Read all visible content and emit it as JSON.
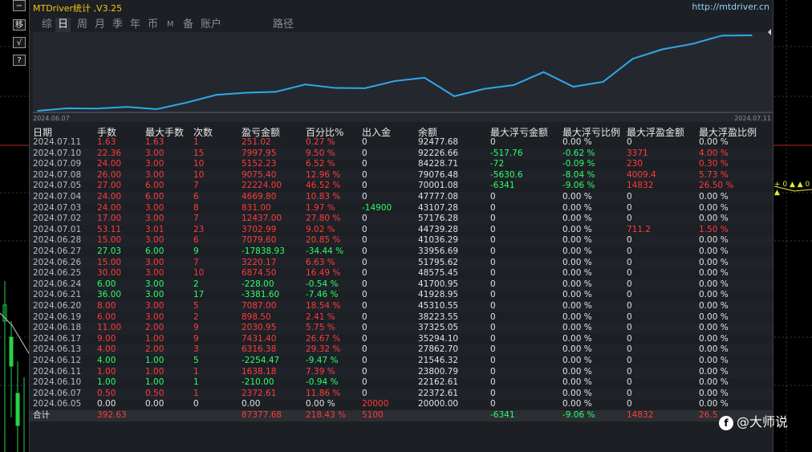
{
  "window": {
    "title": "MTDriver统计 ,V3.25",
    "url": "http://mtdriver.cn"
  },
  "side_buttons": [
    "−",
    "移",
    "√",
    "?"
  ],
  "tabs": [
    {
      "label": "综",
      "active": false
    },
    {
      "label": "日",
      "active": true
    },
    {
      "label": "周",
      "active": false
    },
    {
      "label": "月",
      "active": false
    },
    {
      "label": "季",
      "active": false
    },
    {
      "label": "年",
      "active": false
    },
    {
      "label": "币",
      "active": false
    },
    {
      "label": "M",
      "active": false
    },
    {
      "label": "备",
      "active": false
    },
    {
      "label": "账户",
      "active": false
    },
    {
      "label": "路径",
      "active": false
    }
  ],
  "chart_data": {
    "type": "line",
    "x_start_label": "2024.06.07",
    "x_end_label": "2024.07.11",
    "x": [
      "2024.06.05",
      "2024.06.07",
      "2024.06.10",
      "2024.06.11",
      "2024.06.12",
      "2024.06.13",
      "2024.06.17",
      "2024.06.18",
      "2024.06.19",
      "2024.06.20",
      "2024.06.21",
      "2024.06.24",
      "2024.06.25",
      "2024.06.26",
      "2024.06.27",
      "2024.06.28",
      "2024.07.01",
      "2024.07.02",
      "2024.07.03",
      "2024.07.04",
      "2024.07.05",
      "2024.07.08",
      "2024.07.09",
      "2024.07.10",
      "2024.07.11"
    ],
    "values": [
      20000.0,
      22372.61,
      22162.61,
      23800.79,
      21546.32,
      27862.7,
      35294.1,
      37325.05,
      38223.55,
      45310.55,
      41928.95,
      41700.95,
      48575.45,
      51795.62,
      33956.69,
      41036.29,
      44739.28,
      57176.28,
      43107.28,
      47777.08,
      70001.08,
      79076.48,
      84228.71,
      92226.66,
      92477.68
    ],
    "line_color": "#2fa8e6",
    "grid": false
  },
  "columns": [
    "日期",
    "手数",
    "最大手数",
    "次数",
    "盈亏金额",
    "百分比%",
    "出入金",
    "余额",
    "最大浮亏金额",
    "最大浮亏比例",
    "最大浮盈金额",
    "最大浮盈比例"
  ],
  "rows": [
    {
      "date": "2024.07.11",
      "lots": "1.63",
      "maxlots": "1.63",
      "count": "1",
      "pl": "251.02",
      "pct": "0.27 %",
      "io": "0",
      "bal": "92477.68",
      "mfl": "0",
      "mflp": "0.00 %",
      "mfp": "0",
      "mfpp": "0.00 %",
      "pos": true
    },
    {
      "date": "2024.07.10",
      "lots": "22.36",
      "maxlots": "3.00",
      "count": "15",
      "pl": "7997.95",
      "pct": "9.50 %",
      "io": "0",
      "bal": "92226.66",
      "mfl": "-517.76",
      "mflp": "-0.62 %",
      "mfp": "3371",
      "mfpp": "4.00 %",
      "pos": true
    },
    {
      "date": "2024.07.09",
      "lots": "24.00",
      "maxlots": "3.00",
      "count": "10",
      "pl": "5152.23",
      "pct": "6.52 %",
      "io": "0",
      "bal": "84228.71",
      "mfl": "-72",
      "mflp": "-0.09 %",
      "mfp": "230",
      "mfpp": "0.30 %",
      "pos": true
    },
    {
      "date": "2024.07.08",
      "lots": "26.00",
      "maxlots": "3.00",
      "count": "10",
      "pl": "9075.40",
      "pct": "12.96 %",
      "io": "0",
      "bal": "79076.48",
      "mfl": "-5630.6",
      "mflp": "-8.04 %",
      "mfp": "4009.4",
      "mfpp": "5.73 %",
      "pos": true
    },
    {
      "date": "2024.07.05",
      "lots": "27.00",
      "maxlots": "6.00",
      "count": "7",
      "pl": "22224.00",
      "pct": "46.52 %",
      "io": "0",
      "bal": "70001.08",
      "mfl": "-6341",
      "mflp": "-9.06 %",
      "mfp": "14832",
      "mfpp": "26.50 %",
      "pos": true
    },
    {
      "date": "2024.07.04",
      "lots": "24.00",
      "maxlots": "6.00",
      "count": "6",
      "pl": "4669.80",
      "pct": "10.83 %",
      "io": "0",
      "bal": "47777.08",
      "mfl": "0",
      "mflp": "0.00 %",
      "mfp": "0",
      "mfpp": "0.00 %",
      "pos": true
    },
    {
      "date": "2024.07.03",
      "lots": "24.00",
      "maxlots": "3.00",
      "count": "8",
      "pl": "831.00",
      "pct": "1.97 %",
      "io": "-14900",
      "bal": "43107.28",
      "mfl": "0",
      "mflp": "0.00 %",
      "mfp": "0",
      "mfpp": "0.00 %",
      "pos": true,
      "io_color": "green"
    },
    {
      "date": "2024.07.02",
      "lots": "17.00",
      "maxlots": "3.00",
      "count": "7",
      "pl": "12437.00",
      "pct": "27.80 %",
      "io": "0",
      "bal": "57176.28",
      "mfl": "0",
      "mflp": "0.00 %",
      "mfp": "0",
      "mfpp": "0.00 %",
      "pos": true
    },
    {
      "date": "2024.07.01",
      "lots": "53.11",
      "maxlots": "3.01",
      "count": "23",
      "pl": "3702.99",
      "pct": "9.02 %",
      "io": "0",
      "bal": "44739.28",
      "mfl": "0",
      "mflp": "0.00 %",
      "mfp": "711.2",
      "mfpp": "1.50 %",
      "pos": true
    },
    {
      "date": "2024.06.28",
      "lots": "15.00",
      "maxlots": "3.00",
      "count": "6",
      "pl": "7079.60",
      "pct": "20.85 %",
      "io": "0",
      "bal": "41036.29",
      "mfl": "0",
      "mflp": "0.00 %",
      "mfp": "0",
      "mfpp": "0.00 %",
      "pos": true
    },
    {
      "date": "2024.06.27",
      "lots": "27.03",
      "maxlots": "6.00",
      "count": "9",
      "pl": "-17838.93",
      "pct": "-34.44 %",
      "io": "0",
      "bal": "33956.69",
      "mfl": "0",
      "mflp": "0.00 %",
      "mfp": "0",
      "mfpp": "0.00 %",
      "pos": false
    },
    {
      "date": "2024.06.26",
      "lots": "15.00",
      "maxlots": "3.00",
      "count": "7",
      "pl": "3220.17",
      "pct": "6.63 %",
      "io": "0",
      "bal": "51795.62",
      "mfl": "0",
      "mflp": "0.00 %",
      "mfp": "0",
      "mfpp": "0.00 %",
      "pos": true
    },
    {
      "date": "2024.06.25",
      "lots": "30.00",
      "maxlots": "3.00",
      "count": "10",
      "pl": "6874.50",
      "pct": "16.49 %",
      "io": "0",
      "bal": "48575.45",
      "mfl": "0",
      "mflp": "0.00 %",
      "mfp": "0",
      "mfpp": "0.00 %",
      "pos": true
    },
    {
      "date": "2024.06.24",
      "lots": "6.00",
      "maxlots": "3.00",
      "count": "2",
      "pl": "-228.00",
      "pct": "-0.54 %",
      "io": "0",
      "bal": "41700.95",
      "mfl": "0",
      "mflp": "0.00 %",
      "mfp": "0",
      "mfpp": "0.00 %",
      "pos": false
    },
    {
      "date": "2024.06.21",
      "lots": "36.00",
      "maxlots": "3.00",
      "count": "17",
      "pl": "-3381.60",
      "pct": "-7.46 %",
      "io": "0",
      "bal": "41928.95",
      "mfl": "0",
      "mflp": "0.00 %",
      "mfp": "0",
      "mfpp": "0.00 %",
      "pos": false
    },
    {
      "date": "2024.06.20",
      "lots": "8.00",
      "maxlots": "3.00",
      "count": "5",
      "pl": "7087.00",
      "pct": "18.54 %",
      "io": "0",
      "bal": "45310.55",
      "mfl": "0",
      "mflp": "0.00 %",
      "mfp": "0",
      "mfpp": "0.00 %",
      "pos": true
    },
    {
      "date": "2024.06.19",
      "lots": "6.00",
      "maxlots": "3.00",
      "count": "2",
      "pl": "898.50",
      "pct": "2.41 %",
      "io": "0",
      "bal": "38223.55",
      "mfl": "0",
      "mflp": "0.00 %",
      "mfp": "0",
      "mfpp": "0.00 %",
      "pos": true
    },
    {
      "date": "2024.06.18",
      "lots": "11.00",
      "maxlots": "2.00",
      "count": "9",
      "pl": "2030.95",
      "pct": "5.75 %",
      "io": "0",
      "bal": "37325.05",
      "mfl": "0",
      "mflp": "0.00 %",
      "mfp": "0",
      "mfpp": "0.00 %",
      "pos": true
    },
    {
      "date": "2024.06.17",
      "lots": "9.00",
      "maxlots": "1.00",
      "count": "9",
      "pl": "7431.40",
      "pct": "26.67 %",
      "io": "0",
      "bal": "35294.10",
      "mfl": "0",
      "mflp": "0.00 %",
      "mfp": "0",
      "mfpp": "0.00 %",
      "pos": true
    },
    {
      "date": "2024.06.13",
      "lots": "4.00",
      "maxlots": "2.00",
      "count": "3",
      "pl": "6316.38",
      "pct": "29.32 %",
      "io": "0",
      "bal": "27862.70",
      "mfl": "0",
      "mflp": "0.00 %",
      "mfp": "0",
      "mfpp": "0.00 %",
      "pos": true
    },
    {
      "date": "2024.06.12",
      "lots": "4.00",
      "maxlots": "1.00",
      "count": "5",
      "pl": "-2254.47",
      "pct": "-9.47 %",
      "io": "0",
      "bal": "21546.32",
      "mfl": "0",
      "mflp": "0.00 %",
      "mfp": "0",
      "mfpp": "0.00 %",
      "pos": false
    },
    {
      "date": "2024.06.11",
      "lots": "1.00",
      "maxlots": "1.00",
      "count": "1",
      "pl": "1638.18",
      "pct": "7.39 %",
      "io": "0",
      "bal": "23800.79",
      "mfl": "0",
      "mflp": "0.00 %",
      "mfp": "0",
      "mfpp": "0.00 %",
      "pos": true
    },
    {
      "date": "2024.06.10",
      "lots": "1.00",
      "maxlots": "1.00",
      "count": "1",
      "pl": "-210.00",
      "pct": "-0.94 %",
      "io": "0",
      "bal": "22162.61",
      "mfl": "0",
      "mflp": "0.00 %",
      "mfp": "0",
      "mfpp": "0.00 %",
      "pos": false
    },
    {
      "date": "2024.06.07",
      "lots": "0.50",
      "maxlots": "0.50",
      "count": "1",
      "pl": "2372.61",
      "pct": "11.86 %",
      "io": "0",
      "bal": "22372.61",
      "mfl": "0",
      "mflp": "0.00 %",
      "mfp": "0",
      "mfpp": "0.00 %",
      "pos": true
    },
    {
      "date": "2024.06.05",
      "lots": "0.00",
      "maxlots": "0.00",
      "count": "0",
      "pl": "0.00",
      "pct": "0.00 %",
      "io": "20000",
      "bal": "20000.00",
      "mfl": "0",
      "mflp": "0.00 %",
      "mfp": "0",
      "mfpp": "0.00 %",
      "pos": null,
      "io_color": "red"
    }
  ],
  "total": {
    "label": "合计",
    "lots": "392.63",
    "pl": "87377.68",
    "pct": "218.43 %",
    "io": "5100",
    "mfl": "-6341",
    "mflp": "-9.06 %",
    "mfp": "14832",
    "mfpp": "26.5"
  },
  "right_strip_text": "+ 0 ▲ ▲ 0 ▲",
  "watermark": {
    "icon": "f",
    "text": "@大师说"
  },
  "colors": {
    "positive": "#ff3b3b",
    "negative": "#2bff6a",
    "neutral": "#dfe2e6",
    "title": "#f0c419",
    "url": "#8fd3ff"
  }
}
